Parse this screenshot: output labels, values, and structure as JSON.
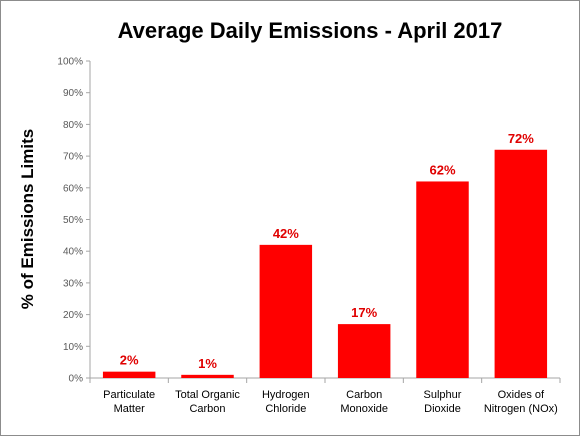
{
  "chart_data": {
    "type": "bar",
    "title": "Average Daily Emissions  - April 2017",
    "ylabel": "% of Emissions Limits",
    "xlabel": "",
    "categories": [
      [
        "Particulate",
        "Matter"
      ],
      [
        "Total Organic",
        "Carbon"
      ],
      [
        "Hydrogen",
        "Chloride"
      ],
      [
        "Carbon",
        "Monoxide"
      ],
      [
        "Sulphur",
        "Dioxide"
      ],
      [
        "Oxides of",
        "Nitrogen (NOx)"
      ]
    ],
    "values": [
      2,
      1,
      42,
      17,
      62,
      72
    ],
    "data_labels": [
      "2%",
      "1%",
      "42%",
      "17%",
      "62%",
      "72%"
    ],
    "ylim": [
      0,
      100
    ],
    "yticks": [
      0,
      10,
      20,
      30,
      40,
      50,
      60,
      70,
      80,
      90,
      100
    ],
    "ytick_labels": [
      "0%",
      "10%",
      "20%",
      "30%",
      "40%",
      "50%",
      "60%",
      "70%",
      "80%",
      "90%",
      "100%"
    ],
    "grid": false,
    "legend": "none",
    "colors": {
      "bar": "#ff0000",
      "data_label": "#e00000",
      "axis": "#a6a6a6"
    }
  }
}
